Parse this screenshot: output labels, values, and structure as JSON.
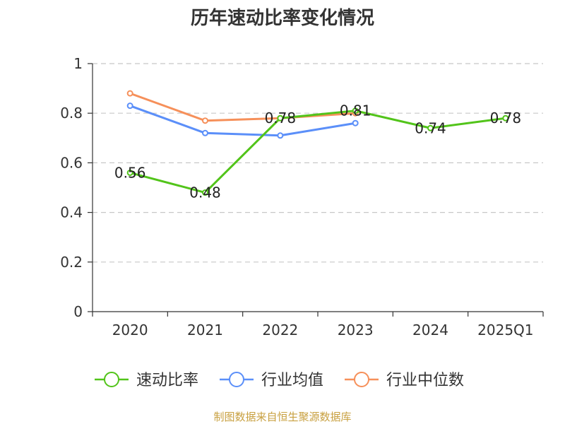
{
  "chart_data": {
    "type": "line",
    "title": "历年速动比率变化情况",
    "categories": [
      "2020",
      "2021",
      "2022",
      "2023",
      "2024",
      "2025Q1"
    ],
    "ylim": [
      0,
      1
    ],
    "yticks": [
      "0",
      "0.2",
      "0.4",
      "0.6",
      "0.8",
      "1"
    ],
    "ytick_values": [
      0,
      0.2,
      0.4,
      0.6,
      0.8,
      1
    ],
    "grid": true,
    "series": [
      {
        "name": "速动比率",
        "color": "#52c41a",
        "values": [
          0.56,
          0.48,
          0.78,
          0.81,
          0.74,
          0.78
        ],
        "labels": [
          "0.56",
          "0.48",
          "0.78",
          "0.81",
          "0.74",
          "0.78"
        ]
      },
      {
        "name": "行业均值",
        "color": "#5b8ff9",
        "values": [
          0.83,
          0.72,
          0.71,
          0.76,
          null,
          null
        ]
      },
      {
        "name": "行业中位数",
        "color": "#f6905a",
        "values": [
          0.88,
          0.77,
          0.78,
          0.8,
          null,
          null
        ]
      }
    ],
    "legend_position": "bottom"
  },
  "footer": {
    "source": "制图数据来自恒生聚源数据库",
    "color": "#c8a040"
  }
}
